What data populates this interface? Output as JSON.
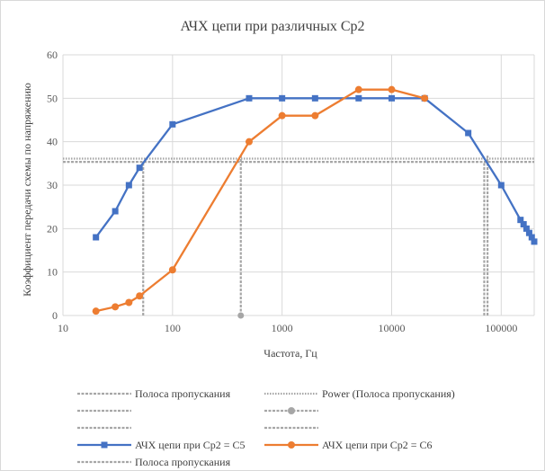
{
  "chart_data": {
    "type": "line",
    "title": "АЧХ цепи при различных Ср2",
    "xlabel": "Частота, Гц",
    "ylabel": "Коэффициент передачи схемы по напряжению",
    "x_scale": "log",
    "xlim": [
      10,
      200000
    ],
    "ylim": [
      0,
      60
    ],
    "x_ticks": [
      "10",
      "100",
      "1000",
      "10000",
      "100000"
    ],
    "y_ticks": [
      "0",
      "10",
      "20",
      "30",
      "40",
      "50",
      "60"
    ],
    "grid": true,
    "legend_position": "bottom",
    "series": [
      {
        "name": "АЧХ цепи при Ср2 = С5",
        "color": "#4472C4",
        "marker": "square",
        "x": [
          20,
          30,
          40,
          50,
          100,
          500,
          1000,
          2000,
          5000,
          10000,
          20000,
          50000,
          100000,
          150000,
          160000,
          170000,
          180000,
          190000,
          200000
        ],
        "y": [
          18,
          24,
          30,
          34,
          44,
          50,
          50,
          50,
          50,
          50,
          50,
          42,
          30,
          22,
          21,
          20,
          19,
          18,
          17
        ]
      },
      {
        "name": "АЧХ цепи при Ср2 = С6",
        "color": "#ED7D31",
        "marker": "circle",
        "x": [
          20,
          30,
          40,
          50,
          100,
          500,
          1000,
          2000,
          5000,
          10000,
          20000
        ],
        "y": [
          1,
          2,
          3,
          4.5,
          10.5,
          40,
          46,
          46,
          52,
          52,
          50
        ]
      }
    ],
    "reference_lines": [
      {
        "name": "Полоса пропускания",
        "color": "#A6A6A6",
        "style": "dashed",
        "y": 35.36,
        "x_from": 10,
        "x_to": 200000
      },
      {
        "name": "Power (Полоса пропускания)",
        "color": "#A6A6A6",
        "style": "dotted",
        "y": 36.1,
        "x_from": 10,
        "x_to": 200000
      },
      {
        "name": "",
        "color": "#A6A6A6",
        "style": "dashed",
        "x": 54,
        "y_from": 0,
        "y_to": 35.36
      },
      {
        "name": "",
        "color": "#A6A6A6",
        "style": "dashed",
        "x": 420,
        "y_from": 0,
        "y_to": 36.77
      },
      {
        "name": "",
        "color": "#A6A6A6",
        "style": "dashed",
        "x": 70000,
        "y_from": 0,
        "y_to": 35.36
      },
      {
        "name": "Полоса пропускания",
        "color": "#A6A6A6",
        "style": "dashed",
        "x": 75000,
        "y_from": 0,
        "y_to": 36.77
      }
    ],
    "reference_points": [
      {
        "x": 420,
        "y": 0,
        "color": "#A6A6A6"
      }
    ],
    "legend": [
      {
        "label": "Полоса пропускания",
        "style": "dashed",
        "color": "#A6A6A6",
        "marker": "none"
      },
      {
        "label": "Power (Полоса пропускания)",
        "style": "dotted",
        "color": "#A6A6A6",
        "marker": "none"
      },
      {
        "label": "",
        "style": "dashed",
        "color": "#A6A6A6",
        "marker": "none"
      },
      {
        "label": "",
        "style": "dashed",
        "color": "#A6A6A6",
        "marker": "circle"
      },
      {
        "label": "",
        "style": "dashed",
        "color": "#A6A6A6",
        "marker": "none"
      },
      {
        "label": "",
        "style": "dashed",
        "color": "#A6A6A6",
        "marker": "none"
      },
      {
        "label": "АЧХ цепи при Ср2 = С5",
        "style": "solid",
        "color": "#4472C4",
        "marker": "square"
      },
      {
        "label": "АЧХ цепи при Ср2 = С6",
        "style": "solid",
        "color": "#ED7D31",
        "marker": "circle"
      },
      {
        "label": "Полоса пропускания",
        "style": "dashed",
        "color": "#A6A6A6",
        "marker": "none"
      }
    ]
  }
}
